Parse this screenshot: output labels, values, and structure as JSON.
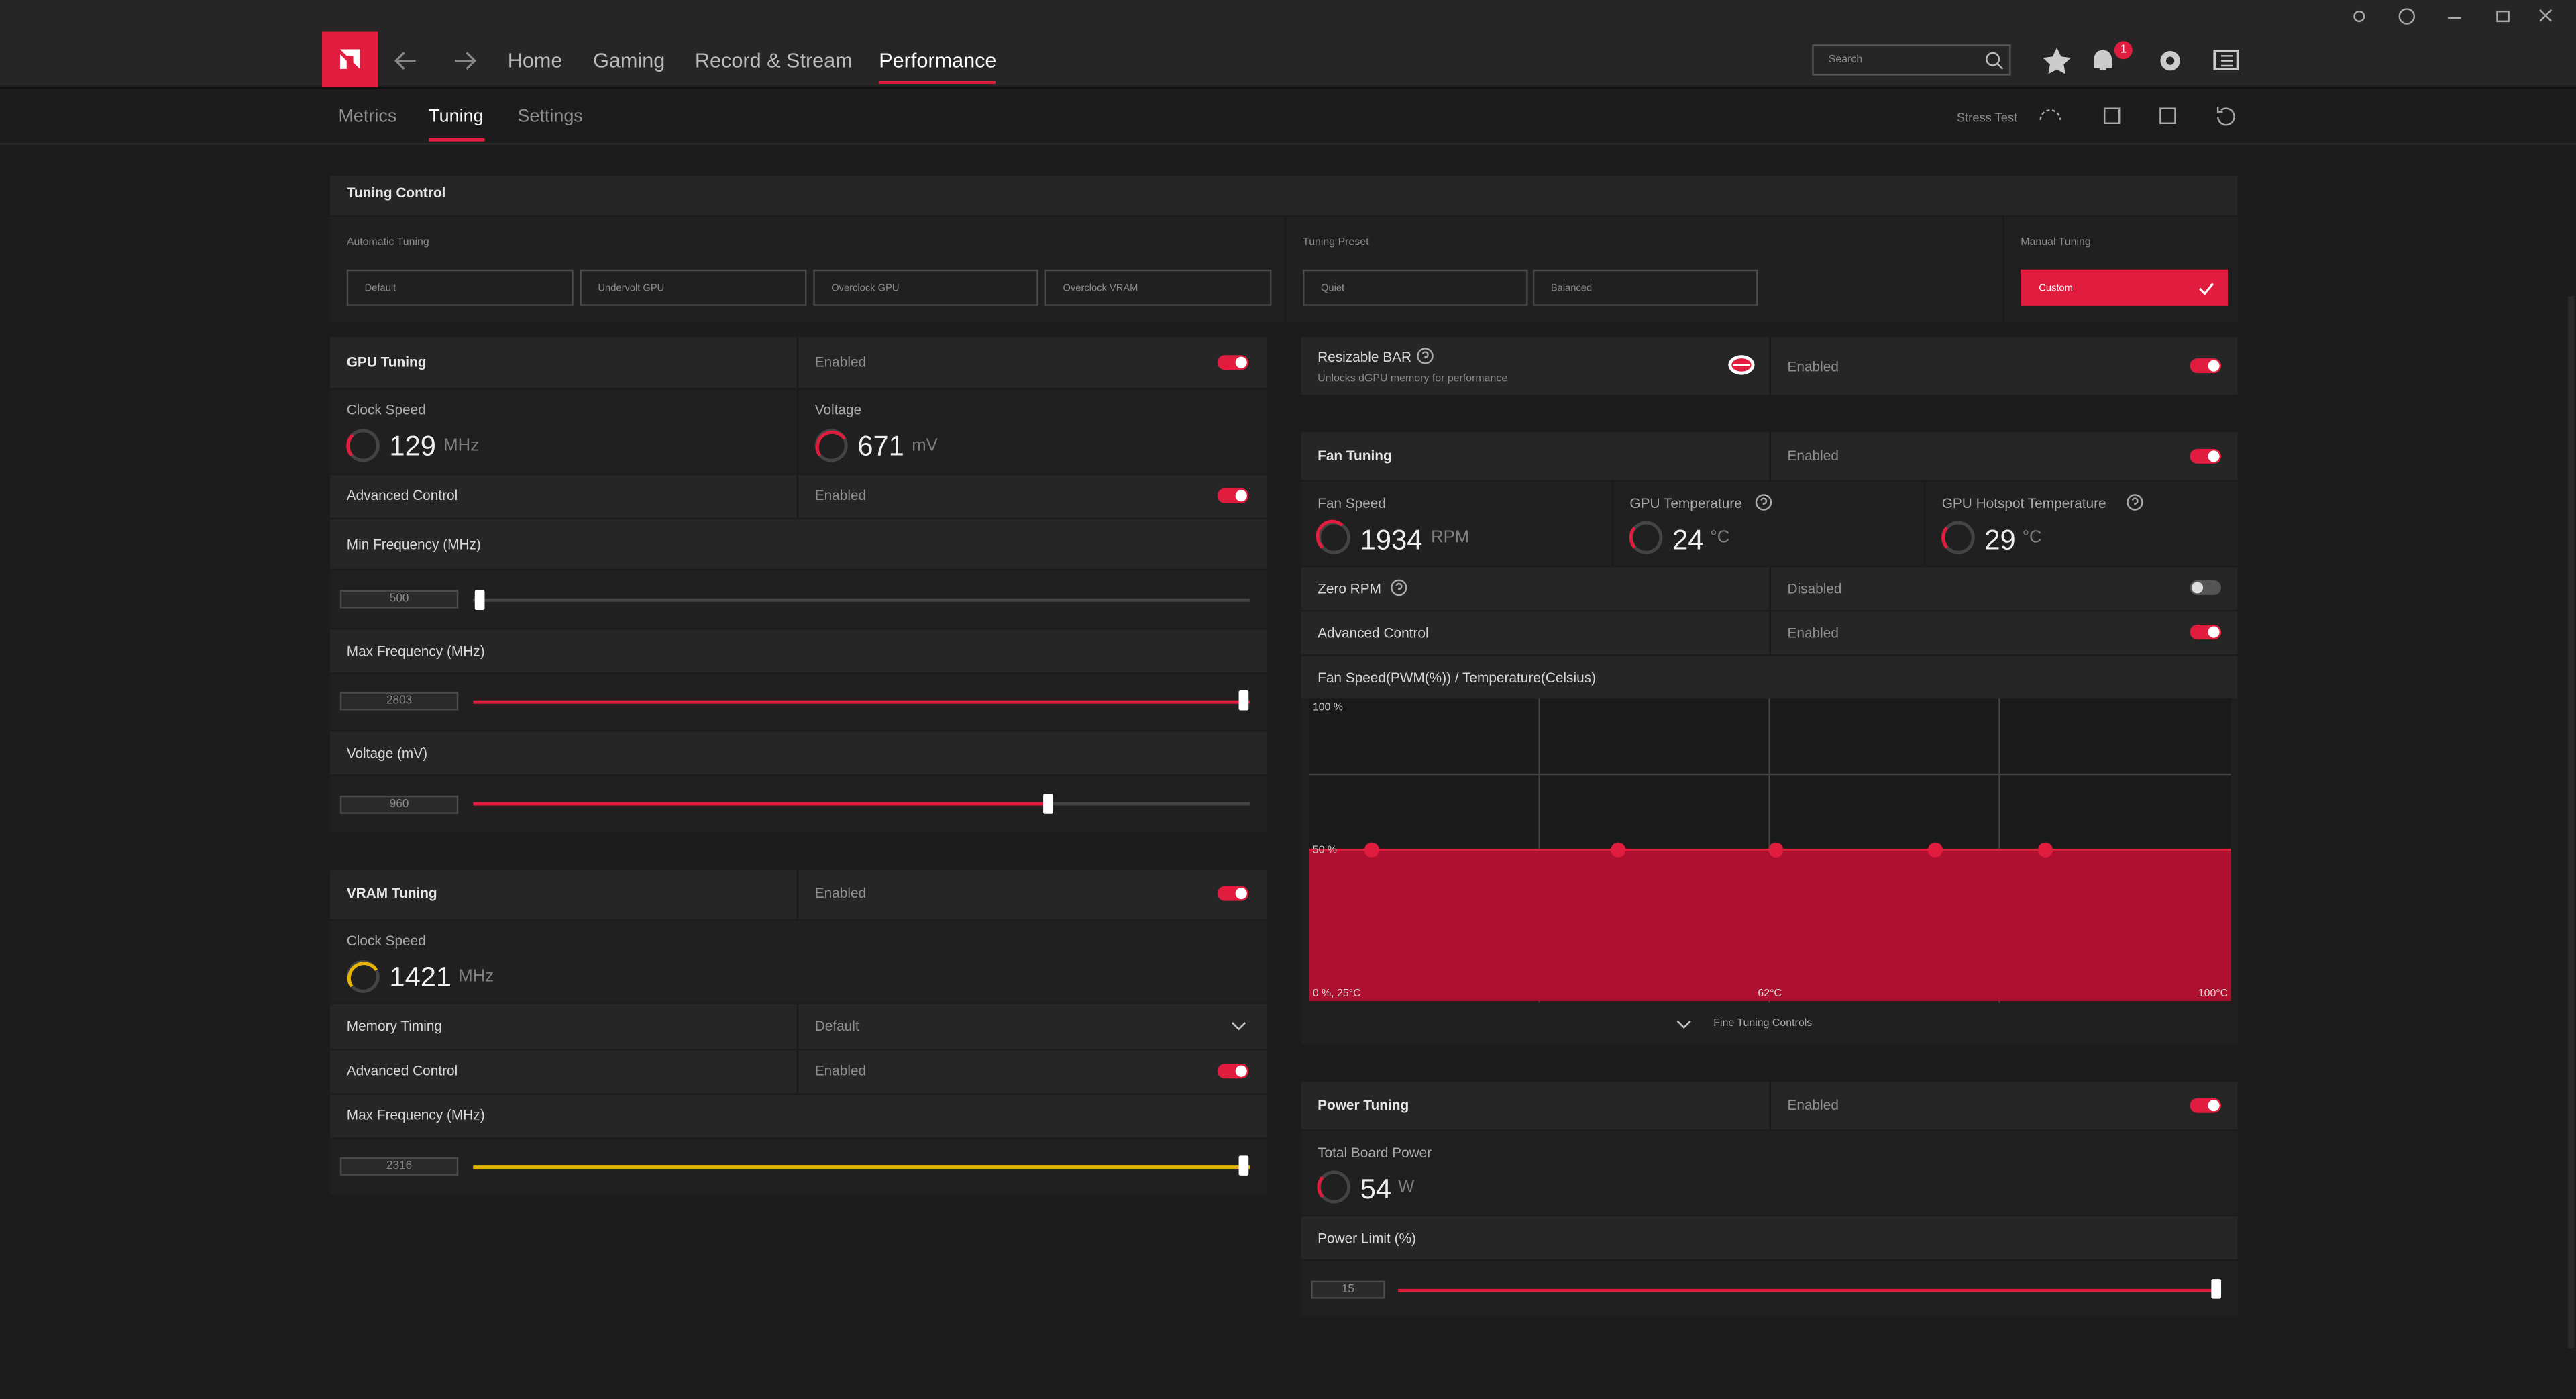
{
  "nav": {
    "tabs": [
      "Home",
      "Gaming",
      "Record & Stream",
      "Performance"
    ],
    "search_placeholder": "Search",
    "notification_count": 1
  },
  "subnav": {
    "tabs": [
      "Metrics",
      "Tuning",
      "Settings"
    ],
    "stress_test": "Stress Test"
  },
  "tuning_control": {
    "title": "Tuning Control",
    "automatic": {
      "label": "Automatic Tuning",
      "options": [
        "Default",
        "Undervolt GPU",
        "Overclock GPU",
        "Overclock VRAM"
      ]
    },
    "preset": {
      "label": "Tuning Preset",
      "options": [
        "Quiet",
        "Balanced"
      ]
    },
    "manual": {
      "label": "Manual Tuning",
      "option": "Custom"
    }
  },
  "gpu_tuning": {
    "title": "GPU Tuning",
    "status": "Enabled",
    "clock_speed": {
      "label": "Clock Speed",
      "value": 129,
      "unit": "MHz"
    },
    "voltage": {
      "label": "Voltage",
      "value": 671,
      "unit": "mV"
    },
    "advanced_control": {
      "label": "Advanced Control",
      "status": "Enabled"
    },
    "sliders": [
      {
        "label": "Min Frequency (MHz)",
        "value": 500
      },
      {
        "label": "Max Frequency (MHz)",
        "value": 2803
      },
      {
        "label": "Voltage (mV)",
        "value": 960
      }
    ]
  },
  "vram_tuning": {
    "title": "VRAM Tuning",
    "status": "Enabled",
    "clock_speed": {
      "label": "Clock Speed",
      "value": 1421,
      "unit": "MHz"
    },
    "memory_timing": {
      "label": "Memory Timing",
      "value": "Default"
    },
    "advanced_control": {
      "label": "Advanced Control",
      "status": "Enabled"
    },
    "slider": {
      "label": "Max Frequency (MHz)",
      "value": 2316
    }
  },
  "resizable_bar": {
    "title": "Resizable BAR",
    "description": "Unlocks dGPU memory for performance",
    "status": "Enabled"
  },
  "fan_tuning": {
    "title": "Fan Tuning",
    "status": "Enabled",
    "fan_speed": {
      "label": "Fan Speed",
      "value": 1934,
      "unit": "RPM"
    },
    "gpu_temperature": {
      "label": "GPU Temperature",
      "value": 24,
      "unit": "°C"
    },
    "hotspot_temperature": {
      "label": "GPU Hotspot Temperature",
      "value": 29,
      "unit": "°C"
    },
    "zero_rpm": {
      "label": "Zero RPM",
      "status": "Disabled"
    },
    "advanced_control": {
      "label": "Advanced Control",
      "status": "Enabled"
    },
    "curve": {
      "title": "Fan Speed(PWM(%)) / Temperature(Celsius)",
      "y_top": "100 %",
      "y_mid": "50 %",
      "origin": "0 %, 25°C",
      "x_mid": "62°C",
      "x_end": "100°C"
    },
    "fine_tuning": "Fine Tuning Controls"
  },
  "power_tuning": {
    "title": "Power Tuning",
    "status": "Enabled",
    "board_power": {
      "label": "Total Board Power",
      "value": 54,
      "unit": "W"
    },
    "power_limit": {
      "label": "Power Limit (%)",
      "value": 15
    }
  }
}
